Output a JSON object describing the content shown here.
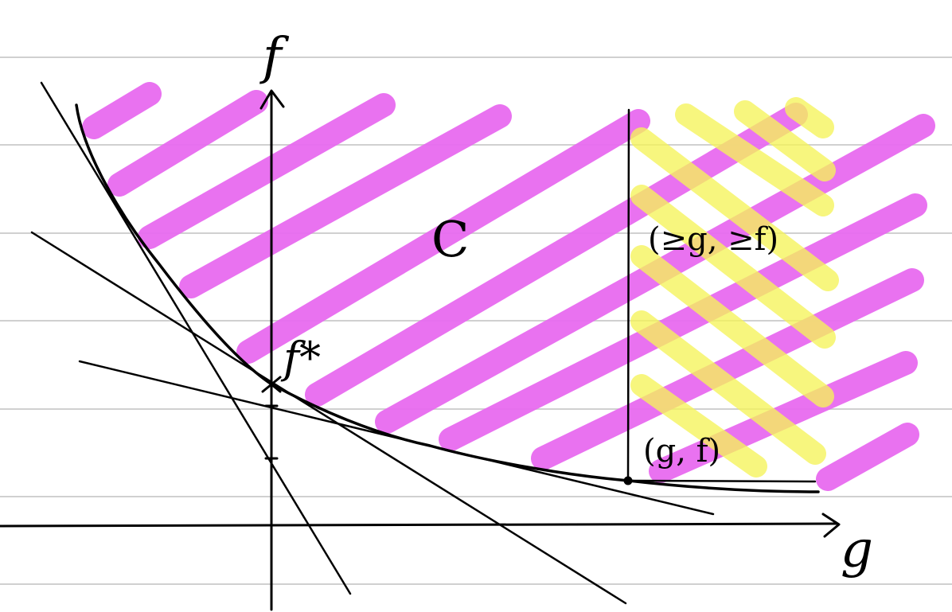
{
  "diagram": {
    "axis_labels": {
      "vertical": "f",
      "horizontal": "g"
    },
    "region_label": "C",
    "point_label": "f*",
    "point_label_base": "f",
    "point_label_sup": "*",
    "pair_label": "(g, f)",
    "dominated_label": "(≥g, ≥f)"
  },
  "colors": {
    "paper": "#ffffff",
    "ruled_line": "#d0d0d0",
    "ink": "#000000",
    "region_hatch": "#e86bf0",
    "dominated_hatch": "#f6f45a",
    "overlap": "#ee6e6e"
  }
}
